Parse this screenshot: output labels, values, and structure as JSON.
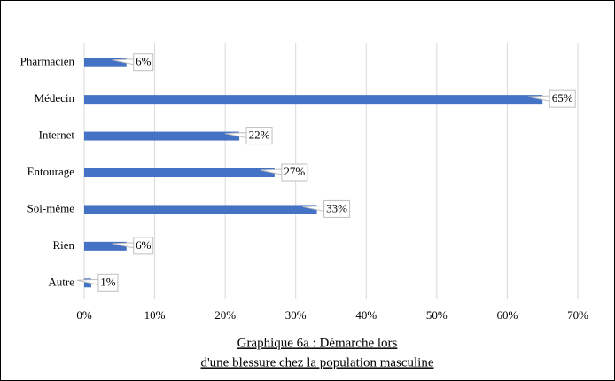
{
  "chart_data": {
    "type": "bar",
    "orientation": "horizontal",
    "title": [
      "Graphique  6a : Démarche  lors",
      "d'une blessure chez la population  masculine"
    ],
    "categories": [
      "Pharmacien",
      "Médecin",
      "Internet",
      "Entourage",
      "Soi-même",
      "Rien",
      "Autre"
    ],
    "values": [
      6,
      65,
      22,
      27,
      33,
      6,
      1
    ],
    "value_labels": [
      "6%",
      "65%",
      "22%",
      "27%",
      "33%",
      "6%",
      "1%"
    ],
    "color": "#4472c4",
    "xlim": [
      0,
      70
    ],
    "xticks": [
      {
        "value": 0,
        "label": "0%"
      },
      {
        "value": 10,
        "label": "10%"
      },
      {
        "value": 20,
        "label": "20%"
      },
      {
        "value": 30,
        "label": "30%"
      },
      {
        "value": 40,
        "label": "40%"
      },
      {
        "value": 50,
        "label": "50%"
      },
      {
        "value": 60,
        "label": "60%"
      },
      {
        "value": 70,
        "label": "70%"
      }
    ],
    "grid": true
  }
}
